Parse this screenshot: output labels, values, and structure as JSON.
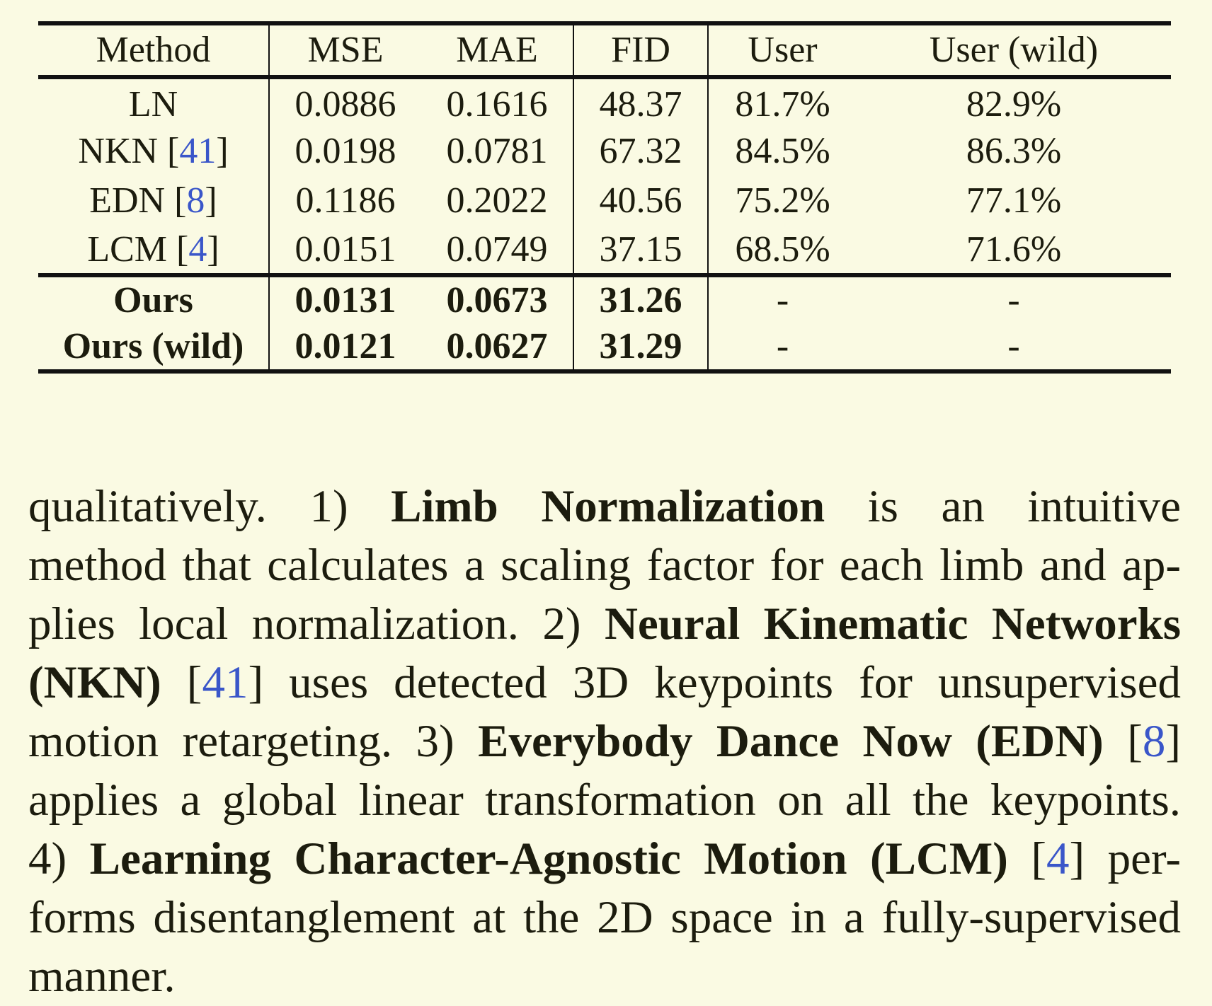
{
  "table": {
    "headers": [
      "Method",
      "MSE",
      "MAE",
      "FID",
      "User",
      "User (wild)"
    ],
    "baseline_rows": [
      {
        "method": "LN",
        "cite": "",
        "mse": "0.0886",
        "mae": "0.1616",
        "fid": "48.37",
        "user": "81.7%",
        "user_wild": "82.9%"
      },
      {
        "method": "NKN [",
        "cite": "41",
        "mse": "0.0198",
        "mae": "0.0781",
        "fid": "67.32",
        "user": "84.5%",
        "user_wild": "86.3%"
      },
      {
        "method": "EDN [",
        "cite": "8",
        "mse": "0.1186",
        "mae": "0.2022",
        "fid": "40.56",
        "user": "75.2%",
        "user_wild": "77.1%"
      },
      {
        "method": "LCM [",
        "cite": "4",
        "mse": "0.0151",
        "mae": "0.0749",
        "fid": "37.15",
        "user": "68.5%",
        "user_wild": "71.6%"
      }
    ],
    "ours_rows": [
      {
        "method": "Ours",
        "mse": "0.0131",
        "mae": "0.0673",
        "fid": "31.26",
        "user": "-",
        "user_wild": "-"
      },
      {
        "method": "Ours (wild)",
        "mse": "0.0121",
        "mae": "0.0627",
        "fid": "31.29",
        "user": "-",
        "user_wild": "-"
      }
    ]
  },
  "paragraph": {
    "l1_a": "qualitatively.",
    "l1_b": "1)",
    "l1_bold": "Limb Normalization",
    "l1_c": "is an intuitive",
    "l2": "method that calculates a scaling factor for each limb and ap-",
    "l3_a": "plies local normalization. 2)",
    "l3_bold": "Neural Kinematic Networks",
    "l4_bold": "(NKN)",
    "l4_cite": "41",
    "l4_c": "uses detected 3D keypoints for unsupervised",
    "l5_a": "motion retargeting. 3)",
    "l5_bold": "Everybody Dance Now (EDN)",
    "l5_cite": "8",
    "l6": "applies a global linear transformation on all the keypoints.",
    "l7_a": "4)",
    "l7_bold": "Learning Character-Agnostic Motion (LCM)",
    "l7_cite": "4",
    "l7_c": "per-",
    "l8": "forms disentanglement at the 2D space in a fully-supervised",
    "l9": "manner."
  }
}
